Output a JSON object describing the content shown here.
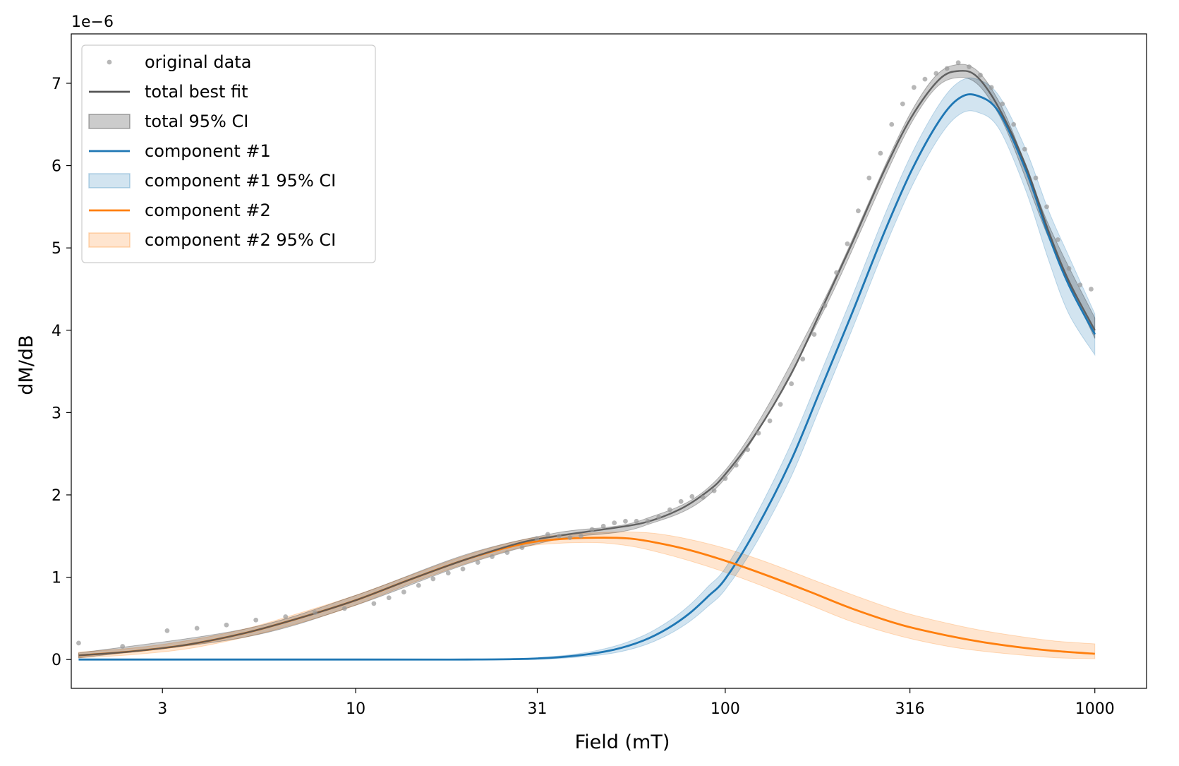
{
  "chart_data": {
    "type": "line",
    "xlabel": "Field (mT)",
    "ylabel": "dM/dB",
    "offset_label": "1e−6",
    "x_scale": "log",
    "xlim": [
      1.7,
      1380
    ],
    "ylim": [
      -0.35,
      7.6
    ],
    "x_ticks": [
      {
        "value": 3,
        "label": "3"
      },
      {
        "value": 10,
        "label": "10"
      },
      {
        "value": 31,
        "label": "31"
      },
      {
        "value": 100,
        "label": "100"
      },
      {
        "value": 316,
        "label": "316"
      },
      {
        "value": 1000,
        "label": "1000"
      }
    ],
    "y_ticks": [
      {
        "value": 0,
        "label": "0"
      },
      {
        "value": 1,
        "label": "1"
      },
      {
        "value": 2,
        "label": "2"
      },
      {
        "value": 3,
        "label": "3"
      },
      {
        "value": 4,
        "label": "4"
      },
      {
        "value": 5,
        "label": "5"
      },
      {
        "value": 6,
        "label": "6"
      },
      {
        "value": 7,
        "label": "7"
      }
    ],
    "legend": {
      "position": "top-left",
      "entries": [
        {
          "label": "original data",
          "kind": "marker",
          "color": "#999999"
        },
        {
          "label": "total best fit",
          "kind": "line",
          "color": "#555555"
        },
        {
          "label": "total 95% CI",
          "kind": "patch",
          "color": "#000000"
        },
        {
          "label": "component #1",
          "kind": "line",
          "color": "#1f77b4"
        },
        {
          "label": "component #1 95% CI",
          "kind": "patch",
          "color": "#1f77b4"
        },
        {
          "label": "component #2",
          "kind": "line",
          "color": "#ff7f0e"
        },
        {
          "label": "component #2 95% CI",
          "kind": "patch",
          "color": "#ff7f0e"
        }
      ]
    },
    "original_data": {
      "name": "original data",
      "color": "#999999",
      "x": [
        1.78,
        2.34,
        3.09,
        3.72,
        4.47,
        5.37,
        6.46,
        7.76,
        9.33,
        11.2,
        12.3,
        13.5,
        14.8,
        16.2,
        17.8,
        19.5,
        21.4,
        23.4,
        25.7,
        28.2,
        30.9,
        33.1,
        35.5,
        38.0,
        40.7,
        43.6,
        46.8,
        50.1,
        53.7,
        57.5,
        61.7,
        66.1,
        70.8,
        75.9,
        81.3,
        87.1,
        93.3,
        100,
        107,
        115,
        123,
        132,
        141,
        151,
        162,
        174,
        186,
        200,
        214,
        229,
        245,
        263,
        282,
        302,
        324,
        347,
        372,
        398,
        427,
        457,
        490,
        525,
        562,
        603,
        646,
        692,
        741,
        794,
        851,
        912,
        977
      ],
      "y": [
        0.2,
        0.16,
        0.35,
        0.38,
        0.42,
        0.48,
        0.52,
        0.57,
        0.62,
        0.68,
        0.75,
        0.82,
        0.9,
        0.98,
        1.05,
        1.1,
        1.18,
        1.25,
        1.3,
        1.36,
        1.47,
        1.52,
        1.5,
        1.48,
        1.5,
        1.58,
        1.62,
        1.66,
        1.68,
        1.68,
        1.68,
        1.73,
        1.82,
        1.92,
        1.98,
        1.97,
        2.05,
        2.2,
        2.36,
        2.55,
        2.75,
        2.9,
        3.1,
        3.35,
        3.65,
        3.95,
        4.3,
        4.7,
        5.05,
        5.45,
        5.85,
        6.15,
        6.5,
        6.75,
        6.95,
        7.05,
        7.12,
        7.18,
        7.25,
        7.2,
        7.1,
        6.95,
        6.75,
        6.5,
        6.2,
        5.85,
        5.5,
        5.1,
        4.75,
        4.55,
        4.5
      ]
    },
    "series": [
      {
        "name": "total best fit",
        "color": "#555555",
        "x": [
          1.78,
          2.5,
          3.5,
          5,
          7,
          10,
          14,
          20,
          28,
          35,
          45,
          60,
          75,
          90,
          100,
          120,
          150,
          180,
          220,
          270,
          320,
          380,
          430,
          480,
          550,
          650,
          750,
          850,
          1000
        ],
        "y": [
          0.05,
          0.1,
          0.18,
          0.32,
          0.5,
          0.72,
          0.97,
          1.22,
          1.42,
          1.5,
          1.57,
          1.66,
          1.82,
          2.05,
          2.25,
          2.72,
          3.45,
          4.2,
          5.05,
          5.95,
          6.6,
          7.05,
          7.15,
          7.08,
          6.7,
          6.0,
          5.2,
          4.6,
          4.0
        ]
      },
      {
        "name": "component #1",
        "color": "#1f77b4",
        "x": [
          1.78,
          10,
          20,
          30,
          40,
          50,
          60,
          70,
          80,
          90,
          100,
          120,
          150,
          180,
          220,
          270,
          320,
          380,
          430,
          480,
          550,
          650,
          750,
          850,
          1000
        ],
        "y": [
          0,
          0,
          0,
          0.01,
          0.05,
          0.12,
          0.23,
          0.38,
          0.56,
          0.77,
          0.98,
          1.55,
          2.4,
          3.25,
          4.2,
          5.2,
          5.95,
          6.55,
          6.82,
          6.85,
          6.65,
          5.95,
          5.15,
          4.55,
          3.95
        ]
      },
      {
        "name": "component #2",
        "color": "#ff7f0e",
        "x": [
          1.78,
          2.5,
          3.5,
          5,
          7,
          10,
          14,
          20,
          28,
          35,
          45,
          55,
          65,
          80,
          100,
          130,
          170,
          220,
          300,
          400,
          500,
          650,
          800,
          1000
        ],
        "y": [
          0.05,
          0.1,
          0.18,
          0.32,
          0.5,
          0.72,
          0.97,
          1.22,
          1.4,
          1.46,
          1.48,
          1.47,
          1.42,
          1.33,
          1.2,
          1.02,
          0.82,
          0.62,
          0.42,
          0.29,
          0.21,
          0.14,
          0.1,
          0.07
        ]
      }
    ],
    "bands": [
      {
        "name": "total 95% CI",
        "color": "#000000",
        "x": [
          1.78,
          5,
          10,
          20,
          35,
          60,
          100,
          180,
          320,
          430,
          550,
          750,
          1000
        ],
        "lower": [
          0.02,
          0.27,
          0.66,
          1.16,
          1.46,
          1.62,
          2.2,
          4.14,
          6.53,
          7.07,
          6.62,
          5.12,
          3.9
        ],
        "upper": [
          0.08,
          0.37,
          0.78,
          1.28,
          1.54,
          1.7,
          2.3,
          4.26,
          6.67,
          7.23,
          6.78,
          5.28,
          4.15
        ]
      },
      {
        "name": "component #1 95% CI",
        "color": "#1f77b4",
        "x": [
          1.78,
          10,
          20,
          30,
          40,
          50,
          60,
          70,
          80,
          90,
          100,
          120,
          150,
          180,
          220,
          270,
          320,
          380,
          430,
          480,
          550,
          650,
          750,
          850,
          1000
        ],
        "lower": [
          0,
          0,
          0,
          0,
          0.03,
          0.08,
          0.17,
          0.3,
          0.46,
          0.65,
          0.85,
          1.38,
          2.2,
          3.05,
          4.0,
          5.0,
          5.75,
          6.35,
          6.62,
          6.65,
          6.45,
          5.7,
          4.85,
          4.2,
          3.7
        ],
        "upper": [
          0,
          0,
          0,
          0.02,
          0.07,
          0.16,
          0.29,
          0.46,
          0.66,
          0.89,
          1.11,
          1.72,
          2.6,
          3.45,
          4.4,
          5.4,
          6.15,
          6.75,
          7.02,
          7.05,
          6.85,
          6.2,
          5.45,
          4.9,
          4.2
        ]
      },
      {
        "name": "component #2 95% CI",
        "color": "#ff7f0e",
        "x": [
          1.78,
          2.5,
          3.5,
          5,
          7,
          10,
          14,
          20,
          28,
          35,
          45,
          55,
          65,
          80,
          100,
          130,
          170,
          220,
          300,
          400,
          500,
          650,
          800,
          1000
        ],
        "lower": [
          0.02,
          0.06,
          0.13,
          0.27,
          0.44,
          0.66,
          0.92,
          1.17,
          1.36,
          1.41,
          1.42,
          1.38,
          1.31,
          1.2,
          1.06,
          0.87,
          0.66,
          0.46,
          0.28,
          0.16,
          0.1,
          0.05,
          0.02,
          0.01
        ],
        "upper": [
          0.09,
          0.14,
          0.23,
          0.37,
          0.56,
          0.78,
          1.02,
          1.27,
          1.45,
          1.51,
          1.54,
          1.55,
          1.53,
          1.46,
          1.35,
          1.18,
          0.98,
          0.79,
          0.58,
          0.44,
          0.35,
          0.27,
          0.22,
          0.19
        ]
      }
    ]
  }
}
